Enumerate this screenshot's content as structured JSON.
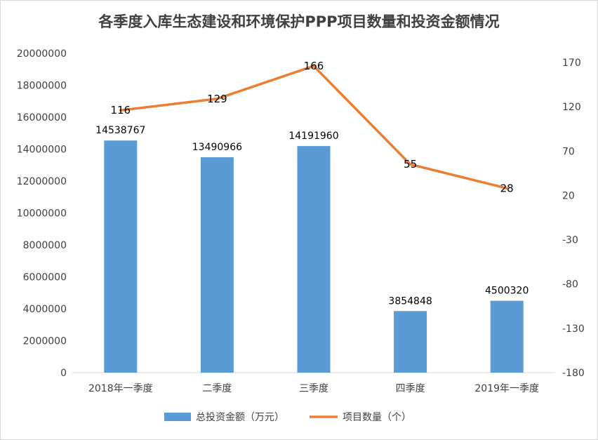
{
  "chart_data": {
    "type": "bar",
    "title": "各季度入库生态建设和环境保护PPP项目数量和投资金额情况",
    "categories": [
      "2018年一季度",
      "二季度",
      "三季度",
      "四季度",
      "2019年一季度"
    ],
    "series": [
      {
        "name": "总投资金额（万元）",
        "type": "bar",
        "axis": "left",
        "color": "#5b9bd5",
        "values": [
          14538767,
          13490966,
          14191960,
          3854848,
          4500320
        ],
        "labels": [
          "14538767",
          "13490966",
          "14191960",
          "3854848",
          "4500320"
        ]
      },
      {
        "name": "项目数量（个）",
        "type": "line",
        "axis": "right",
        "color": "#ed7d31",
        "values": [
          116,
          129,
          166,
          55,
          28
        ],
        "labels": [
          "116",
          "129",
          "166",
          "55",
          "28"
        ]
      }
    ],
    "left_axis": {
      "ylim": [
        0,
        20000000
      ],
      "ticks": [
        0,
        2000000,
        4000000,
        6000000,
        8000000,
        10000000,
        12000000,
        14000000,
        16000000,
        18000000,
        20000000
      ],
      "tick_labels": [
        "0",
        "2000000",
        "4000000",
        "6000000",
        "8000000",
        "10000000",
        "12000000",
        "14000000",
        "16000000",
        "18000000",
        "20000000"
      ]
    },
    "right_axis": {
      "ylim": [
        -180,
        170
      ],
      "ticks": [
        -180,
        -130,
        -80,
        -30,
        20,
        70,
        120,
        170
      ],
      "tick_labels": [
        "-180",
        "-130",
        "-80",
        "-30",
        "20",
        "70",
        "120",
        "170"
      ]
    },
    "grid": false,
    "legend_position": "bottom"
  }
}
